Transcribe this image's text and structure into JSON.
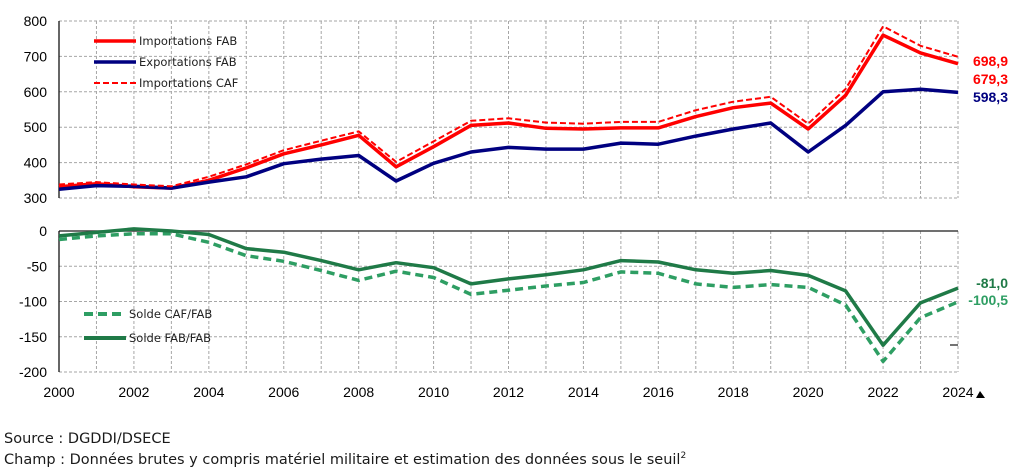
{
  "chart_data": [
    {
      "type": "line",
      "title": "",
      "xlabel": "",
      "ylabel": "",
      "x": [
        2000,
        2001,
        2002,
        2003,
        2004,
        2005,
        2006,
        2007,
        2008,
        2009,
        2010,
        2011,
        2012,
        2013,
        2014,
        2015,
        2016,
        2017,
        2018,
        2019,
        2020,
        2021,
        2022,
        2023,
        2024
      ],
      "ylim": [
        300,
        800
      ],
      "yticks": [
        300,
        400,
        500,
        600,
        700,
        800
      ],
      "ytick_labels": [
        "300",
        "400",
        "500",
        "600",
        "700",
        "800"
      ],
      "grid": true,
      "legend_position": "top-left",
      "series": [
        {
          "name": "Importations FAB",
          "color": "#ff0000",
          "style": "solid",
          "values": [
            332,
            340,
            332,
            328,
            350,
            385,
            425,
            450,
            477,
            388,
            445,
            505,
            512,
            497,
            495,
            498,
            498,
            530,
            555,
            568,
            495,
            590,
            760,
            710,
            679.3
          ],
          "end_label": "679,3"
        },
        {
          "name": "Exportations FAB",
          "color": "#000080",
          "style": "solid",
          "values": [
            325,
            335,
            333,
            328,
            345,
            360,
            397,
            410,
            420,
            348,
            398,
            430,
            443,
            438,
            438,
            455,
            452,
            475,
            495,
            512,
            430,
            505,
            600,
            607,
            598.3
          ],
          "end_label": "598,3"
        },
        {
          "name": "Importations CAF",
          "color": "#ff0000",
          "style": "dashed",
          "values": [
            338,
            345,
            338,
            333,
            360,
            395,
            435,
            462,
            488,
            402,
            460,
            518,
            525,
            513,
            510,
            515,
            515,
            548,
            572,
            586,
            510,
            608,
            785,
            730,
            698.9
          ],
          "end_label": "698,9"
        }
      ]
    },
    {
      "type": "line",
      "title": "",
      "xlabel": "",
      "ylabel": "",
      "x": [
        2000,
        2001,
        2002,
        2003,
        2004,
        2005,
        2006,
        2007,
        2008,
        2009,
        2010,
        2011,
        2012,
        2013,
        2014,
        2015,
        2016,
        2017,
        2018,
        2019,
        2020,
        2021,
        2022,
        2023,
        2024
      ],
      "xtick_labels": [
        "2000",
        "2002",
        "2004",
        "2006",
        "2008",
        "2010",
        "2012",
        "2014",
        "2016",
        "2018",
        "2020",
        "2022",
        "2024"
      ],
      "ylim": [
        -200,
        0
      ],
      "yticks": [
        -200,
        -150,
        -100,
        -50,
        0
      ],
      "ytick_labels": [
        "-200",
        "-150",
        "-100",
        "-50",
        "0"
      ],
      "grid": true,
      "legend_position": "bottom-left",
      "series": [
        {
          "name": "Solde CAF/FAB",
          "color": "#2e9e63",
          "style": "dashed",
          "values": [
            -12,
            -7,
            -4,
            -4,
            -16,
            -35,
            -43,
            -56,
            -70,
            -57,
            -66,
            -90,
            -84,
            -78,
            -73,
            -58,
            -60,
            -75,
            -80,
            -76,
            -80,
            -105,
            -185,
            -123,
            -100.5
          ],
          "end_label": "-100,5"
        },
        {
          "name": "Solde FAB/FAB",
          "color": "#1f7a47",
          "style": "solid",
          "values": [
            -7,
            -2,
            3,
            0,
            -5,
            -25,
            -30,
            -42,
            -55,
            -45,
            -52,
            -75,
            -68,
            -62,
            -55,
            -42,
            -44,
            -55,
            -60,
            -56,
            -63,
            -85,
            -162,
            -102,
            -81.0
          ],
          "end_label": "-81,0"
        }
      ]
    }
  ],
  "footer": {
    "source": "Source : DGDDI/DSECE",
    "champ": "Champ : Données brutes y compris matériel militaire et estimation des données sous le seuil",
    "champ_sup": "2"
  }
}
